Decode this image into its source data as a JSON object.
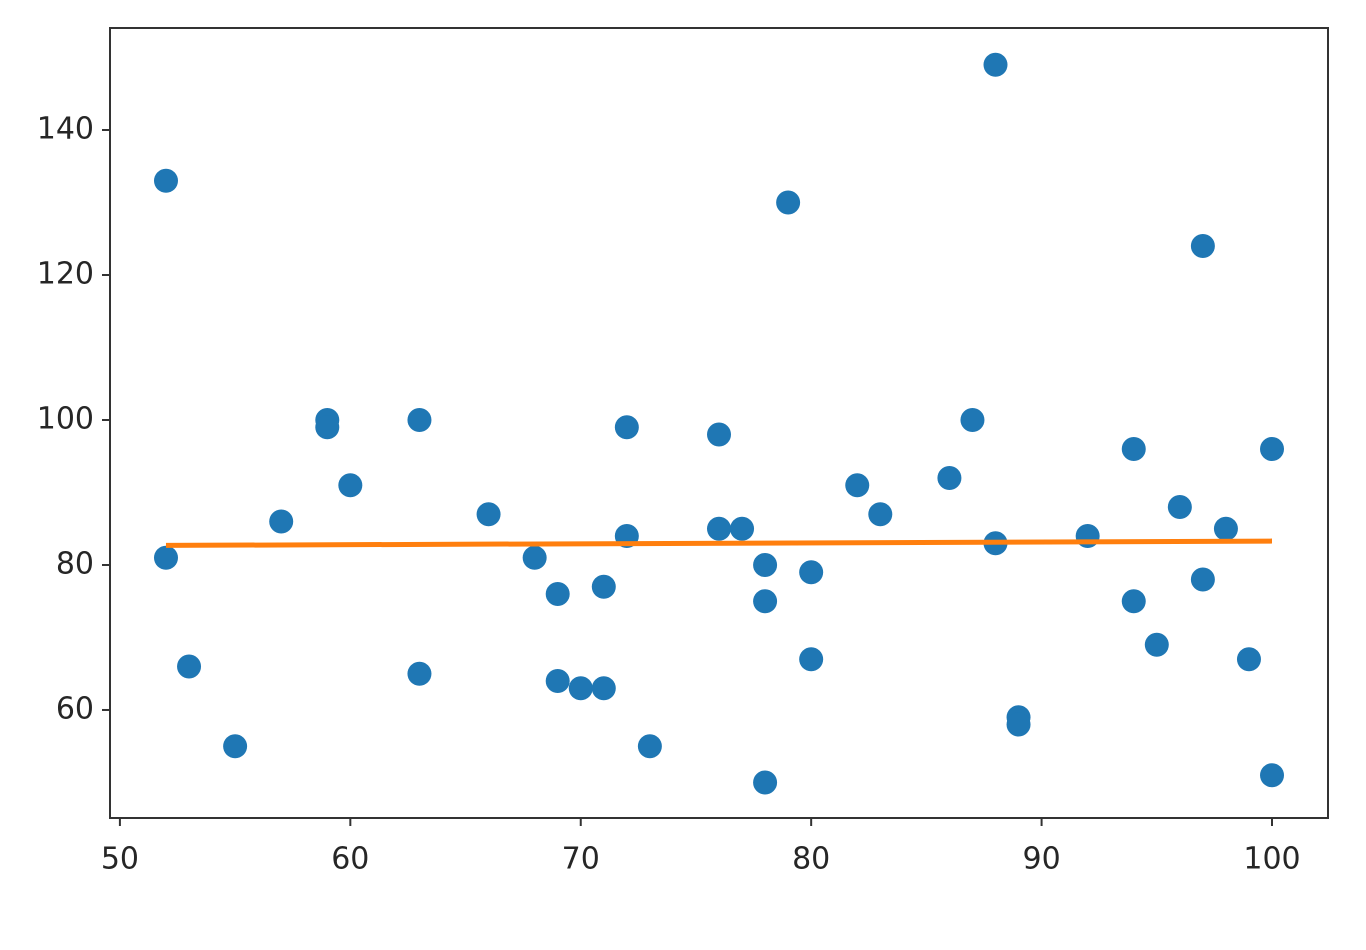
{
  "chart_data": {
    "type": "scatter",
    "xlim": [
      49.57,
      102.43
    ],
    "ylim": [
      45.1,
      154.07
    ],
    "xticks": [
      50,
      60,
      70,
      80,
      90,
      100
    ],
    "yticks": [
      60,
      80,
      100,
      120,
      140
    ],
    "series": [
      {
        "mode": "markers",
        "color": "#1f77b4",
        "x": [
          52,
          52,
          53,
          55,
          57,
          59,
          59,
          60,
          63,
          63,
          66,
          68,
          69,
          69,
          70,
          71,
          71,
          72,
          72,
          73,
          76,
          76,
          77,
          78,
          78,
          78,
          79,
          80,
          80,
          82,
          83,
          86,
          87,
          88,
          88,
          89,
          89,
          92,
          94,
          94,
          95,
          96,
          97,
          97,
          98,
          99,
          100,
          100
        ],
        "values": [
          133,
          81,
          66,
          55,
          86,
          100,
          99,
          91,
          100,
          65,
          87,
          81,
          76,
          64,
          63,
          77,
          63,
          99,
          84,
          55,
          98,
          85,
          85,
          80,
          75,
          50,
          130,
          79,
          67,
          91,
          87,
          92,
          100,
          149,
          83,
          59,
          58,
          84,
          96,
          75,
          69,
          88,
          124,
          78,
          85,
          67,
          96,
          51
        ]
      },
      {
        "mode": "lines",
        "color": "#ff7f0e",
        "x": [
          52,
          100
        ],
        "values": [
          82.7,
          83.3
        ]
      }
    ]
  }
}
